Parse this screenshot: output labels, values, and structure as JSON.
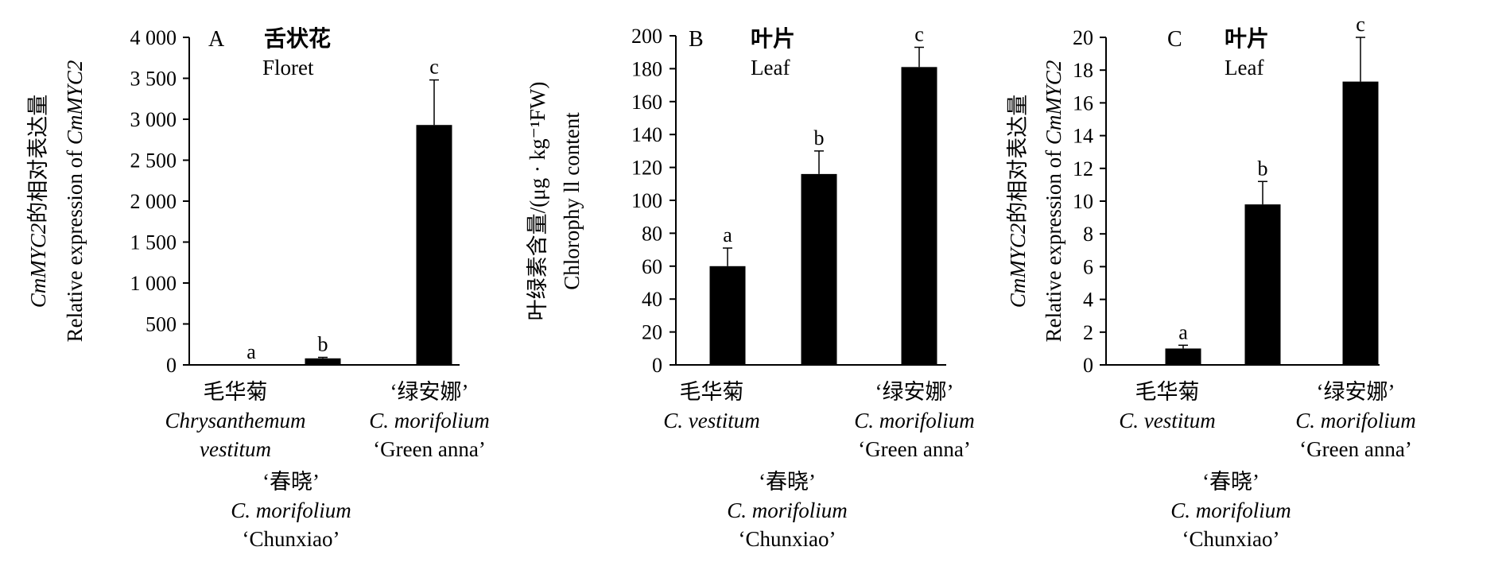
{
  "chart_data": [
    {
      "type": "bar",
      "panel": "A",
      "title_cn": "舌状花",
      "title_en": "Floret",
      "ylabel_cn_italic": "CmMYC2",
      "ylabel_cn_rest": "的相对表达量",
      "ylabel_en_rest": "Relative expression of",
      "ylabel_en_italic": "CmMYC2",
      "ylim": [
        0,
        4000
      ],
      "yticks": [
        "0",
        "500",
        "1 000",
        "1 500",
        "2 000",
        "2 500",
        "3 000",
        "3 500",
        "4 000"
      ],
      "categories": [
        {
          "lines": [
            "毛华菊",
            "Chrysanthemum",
            "vestitum"
          ]
        },
        {
          "lines": [
            "‘春晓’",
            "C. morifolium",
            "‘Chunxiao’"
          ]
        },
        {
          "lines": [
            "‘绿安娜’",
            "C. morifolium",
            "‘Green anna’"
          ]
        }
      ],
      "values": [
        1,
        80,
        2930
      ],
      "errors": [
        0,
        12,
        550
      ],
      "letters": [
        "a",
        "b",
        "c"
      ]
    },
    {
      "type": "bar",
      "panel": "B",
      "title_cn": "叶片",
      "title_en": "Leaf",
      "ylabel_cn": "叶绿素含量/(μg · kg⁻¹FW)",
      "ylabel_en": "Chlorophy ll content",
      "ylim": [
        0,
        200
      ],
      "yticks": [
        "0",
        "20",
        "40",
        "60",
        "80",
        "100",
        "120",
        "140",
        "160",
        "180",
        "200"
      ],
      "categories": [
        {
          "lines": [
            "毛华菊",
            "C. vestitum"
          ]
        },
        {
          "lines": [
            "‘春晓’",
            "C. morifolium",
            "‘Chunxiao’"
          ]
        },
        {
          "lines": [
            "‘绿安娜’",
            "C. morifolium",
            "‘Green anna’"
          ]
        }
      ],
      "values": [
        60,
        116,
        181
      ],
      "errors": [
        11,
        14,
        12
      ],
      "letters": [
        "a",
        "b",
        "c"
      ]
    },
    {
      "type": "bar",
      "panel": "C",
      "title_cn": "叶片",
      "title_en": "Leaf",
      "ylabel_cn_italic": "CmMYC2",
      "ylabel_cn_rest": "的相对表达量",
      "ylabel_en_rest": "Relative expression of",
      "ylabel_en_italic": "CmMYC2",
      "ylim": [
        0,
        20
      ],
      "yticks": [
        "0",
        "2",
        "4",
        "6",
        "8",
        "10",
        "12",
        "14",
        "16",
        "18",
        "20"
      ],
      "categories": [
        {
          "lines": [
            "毛华菊",
            "C. vestitum"
          ]
        },
        {
          "lines": [
            "‘春晓’",
            "C. morifolium",
            "‘Chunxiao’"
          ]
        },
        {
          "lines": [
            "‘绿安娜’",
            "C. morifolium",
            "‘Green anna’"
          ]
        }
      ],
      "values": [
        1,
        9.8,
        17.3
      ],
      "errors": [
        0.2,
        1.4,
        2.7
      ],
      "letters": [
        "a",
        "b",
        "c"
      ]
    }
  ],
  "colors": {
    "bar": "#000000",
    "axis": "#000000",
    "background": "#ffffff"
  }
}
